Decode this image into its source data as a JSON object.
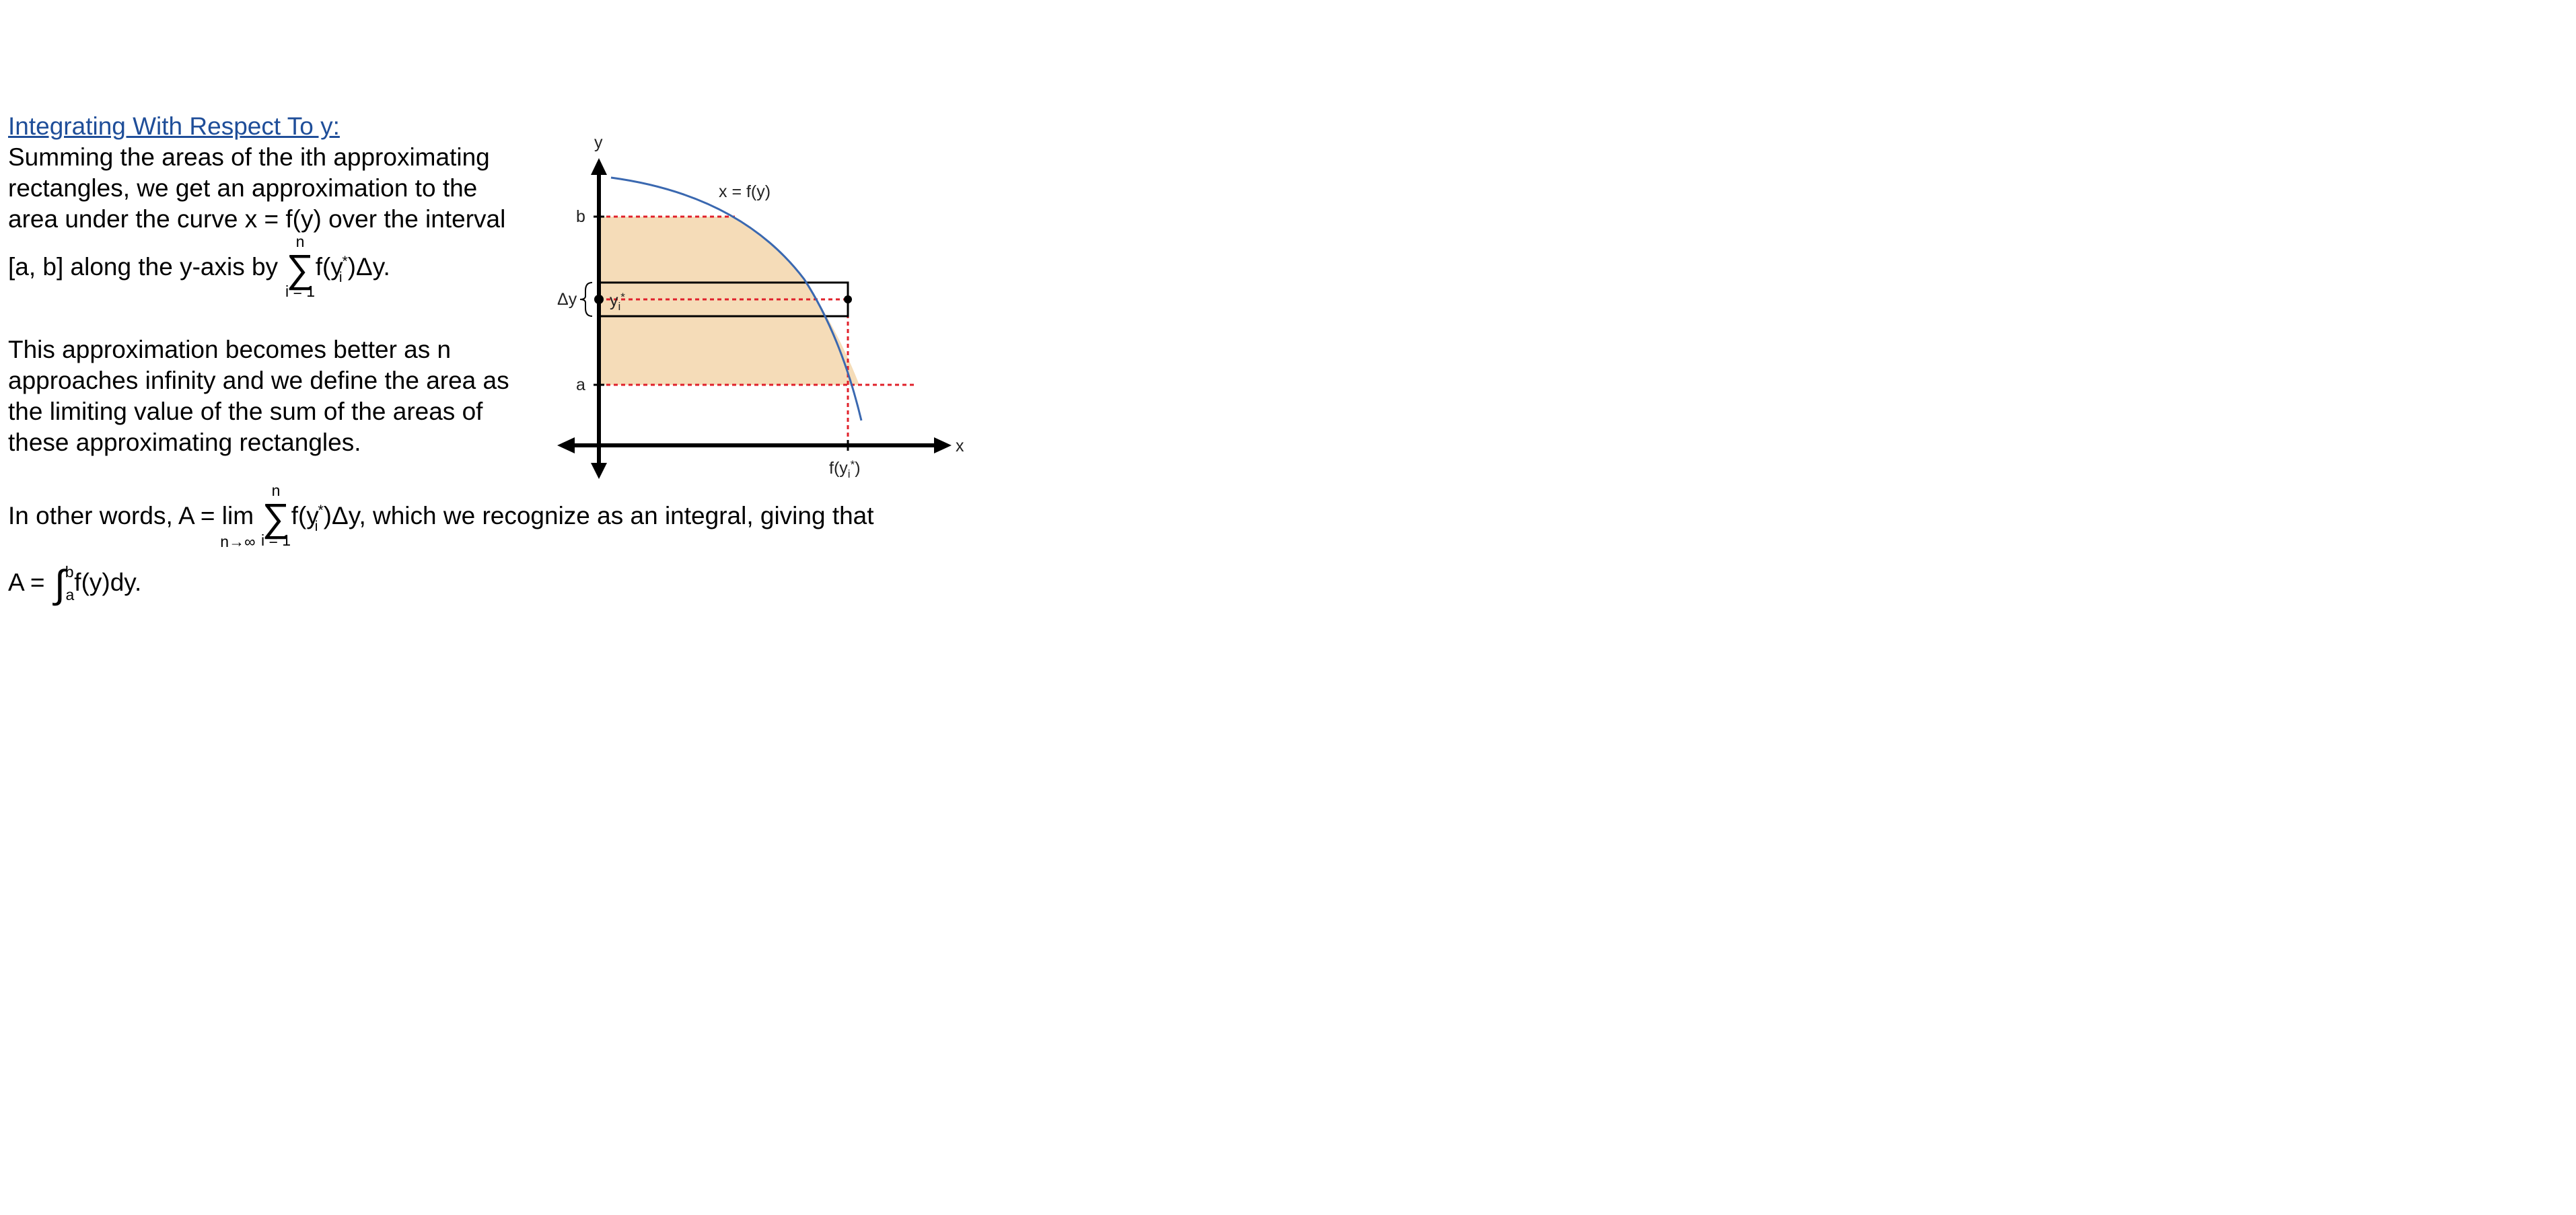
{
  "heading": "Integrating With Respect To y:",
  "para1": {
    "line1": "Summing the areas of the ith approximating",
    "line2": "rectangles, we get an approximation to the",
    "line3": "area under the curve x = f(y) over the interval",
    "line4_prefix": "[a, b] along the y-axis by",
    "sum_upper": "n",
    "sum_lower": "i = 1",
    "term": "f(y",
    "term_sub": "i",
    "term_sup": "*",
    "term_end": ")Δy."
  },
  "para2": {
    "line1": "This approximation becomes better as n",
    "line2": "approaches infinity and we define the area as",
    "line3": "the limiting value of the sum of the areas of",
    "line4": "these approximating rectangles."
  },
  "para3": {
    "prefix": "In other words, A = ",
    "lim": "lim",
    "lim_sub": "n→∞",
    "sum_upper": "n",
    "sum_lower": "i = 1",
    "term": "f(y",
    "term_sub": "i",
    "term_sup": "*",
    "term_end": ")Δy, which we recognize as an integral, giving that"
  },
  "para4": {
    "prefix": "A = ",
    "upper": "b",
    "lower": "a",
    "integrand": "f(y)dy."
  },
  "diagram": {
    "y_axis_label": "y",
    "x_axis_label": "x",
    "curve_label": "x = f(y)",
    "b_label": "b",
    "a_label": "a",
    "dy_label": "Δy",
    "yi_label": "y",
    "yi_sub": "i",
    "yi_sup": "*",
    "fyi_label": "f(y",
    "fyi_sub": "i",
    "fyi_sup": "*",
    "fyi_end": ")",
    "colors": {
      "curve": "#3a68b0",
      "fill": "#f5dcb8",
      "dashed": "#e0202a",
      "axis": "#000000",
      "heading_link": "#1f4e99"
    }
  }
}
